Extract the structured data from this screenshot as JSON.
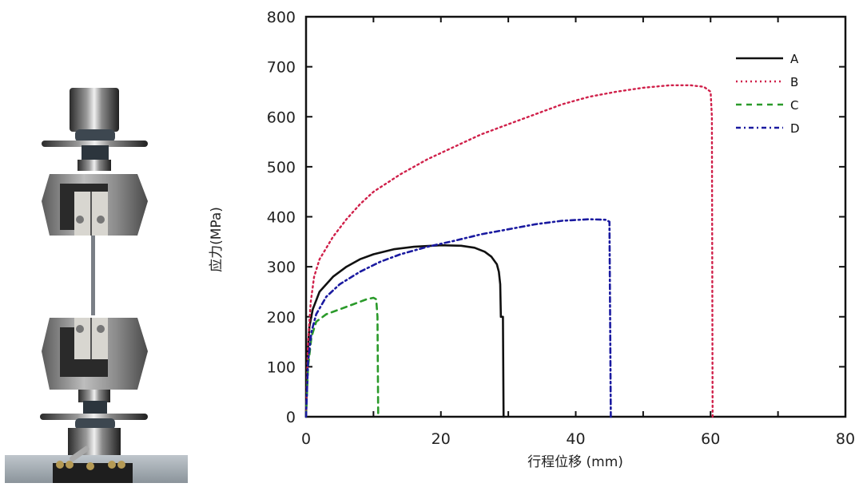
{
  "figure": {
    "left_image": {
      "description": "Universal tensile testing machine with wedge grips holding a specimen",
      "label": "tensile-test-grips"
    }
  },
  "chart_data": {
    "type": "line",
    "title": "",
    "xlabel": "行程位移 (mm)",
    "ylabel": "应力(MPa)",
    "xlim": [
      0,
      80
    ],
    "ylim": [
      0,
      800
    ],
    "xticks": [
      0,
      20,
      40,
      60,
      80
    ],
    "yticks": [
      0,
      100,
      200,
      300,
      400,
      500,
      600,
      700,
      800
    ],
    "grid": false,
    "legend_position": "upper right",
    "series": [
      {
        "name": "A",
        "color": "#111111",
        "style": "solid",
        "points": [
          [
            0,
            0
          ],
          [
            0.2,
            120
          ],
          [
            0.5,
            180
          ],
          [
            1,
            215
          ],
          [
            2,
            250
          ],
          [
            4,
            280
          ],
          [
            6,
            300
          ],
          [
            8,
            315
          ],
          [
            10,
            325
          ],
          [
            13,
            335
          ],
          [
            16,
            340
          ],
          [
            20,
            343
          ],
          [
            23,
            342
          ],
          [
            25,
            338
          ],
          [
            26.5,
            330
          ],
          [
            27.5,
            320
          ],
          [
            28.3,
            305
          ],
          [
            28.6,
            290
          ],
          [
            28.8,
            265
          ],
          [
            28.9,
            200
          ],
          [
            29.2,
            200
          ],
          [
            29.3,
            0
          ]
        ]
      },
      {
        "name": "B",
        "color": "#d0204a",
        "style": "dotted",
        "points": [
          [
            0,
            0
          ],
          [
            0.3,
            150
          ],
          [
            0.7,
            230
          ],
          [
            1.2,
            280
          ],
          [
            2,
            315
          ],
          [
            4,
            360
          ],
          [
            6,
            395
          ],
          [
            8,
            425
          ],
          [
            10,
            450
          ],
          [
            14,
            485
          ],
          [
            18,
            515
          ],
          [
            22,
            540
          ],
          [
            26,
            565
          ],
          [
            30,
            585
          ],
          [
            34,
            605
          ],
          [
            38,
            625
          ],
          [
            42,
            640
          ],
          [
            46,
            650
          ],
          [
            50,
            658
          ],
          [
            54,
            663
          ],
          [
            57,
            663
          ],
          [
            59,
            660
          ],
          [
            60,
            650
          ],
          [
            60.2,
            600
          ],
          [
            60.3,
            0
          ]
        ]
      },
      {
        "name": "C",
        "color": "#2a9a2a",
        "style": "dashed",
        "points": [
          [
            0,
            0
          ],
          [
            0.3,
            100
          ],
          [
            0.8,
            160
          ],
          [
            1.5,
            190
          ],
          [
            3,
            205
          ],
          [
            5,
            215
          ],
          [
            7,
            225
          ],
          [
            9,
            235
          ],
          [
            10,
            238
          ],
          [
            10.4,
            235
          ],
          [
            10.6,
            200
          ],
          [
            10.7,
            0
          ]
        ]
      },
      {
        "name": "D",
        "color": "#1a1aa0",
        "style": "dashdot",
        "points": [
          [
            0,
            0
          ],
          [
            0.3,
            110
          ],
          [
            0.8,
            170
          ],
          [
            1.5,
            205
          ],
          [
            3,
            240
          ],
          [
            5,
            265
          ],
          [
            8,
            290
          ],
          [
            11,
            310
          ],
          [
            14,
            325
          ],
          [
            18,
            340
          ],
          [
            22,
            352
          ],
          [
            26,
            365
          ],
          [
            30,
            375
          ],
          [
            34,
            385
          ],
          [
            38,
            392
          ],
          [
            42,
            395
          ],
          [
            44.5,
            394
          ],
          [
            45,
            390
          ],
          [
            45.2,
            0
          ]
        ]
      }
    ]
  }
}
